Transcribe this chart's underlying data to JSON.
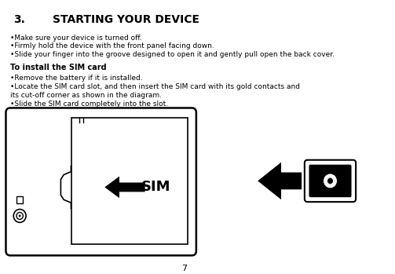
{
  "title_num": "3.",
  "title_text": "STARTING YOUR DEVICE",
  "bullet1": "•Make sure your device is turned off.",
  "bullet2": "•Firmly hold the device with the front panel facing down.",
  "bullet3": "•Slide your finger into the groove designed to open it and gently pull open the back cover.",
  "subtitle": "To install the SIM card",
  "bullet4": "•Remove the battery if it is installed.",
  "bullet5a": "•Locate the SIM card slot, and then insert the SIM card with its gold contacts and",
  "bullet5b": "its cut-off corner as shown in the diagram.",
  "bullet6": "•Slide the SIM card completely into the slot.",
  "page_number": "7",
  "bg_color": "#ffffff",
  "text_color": "#000000",
  "sim_label": "SIM"
}
